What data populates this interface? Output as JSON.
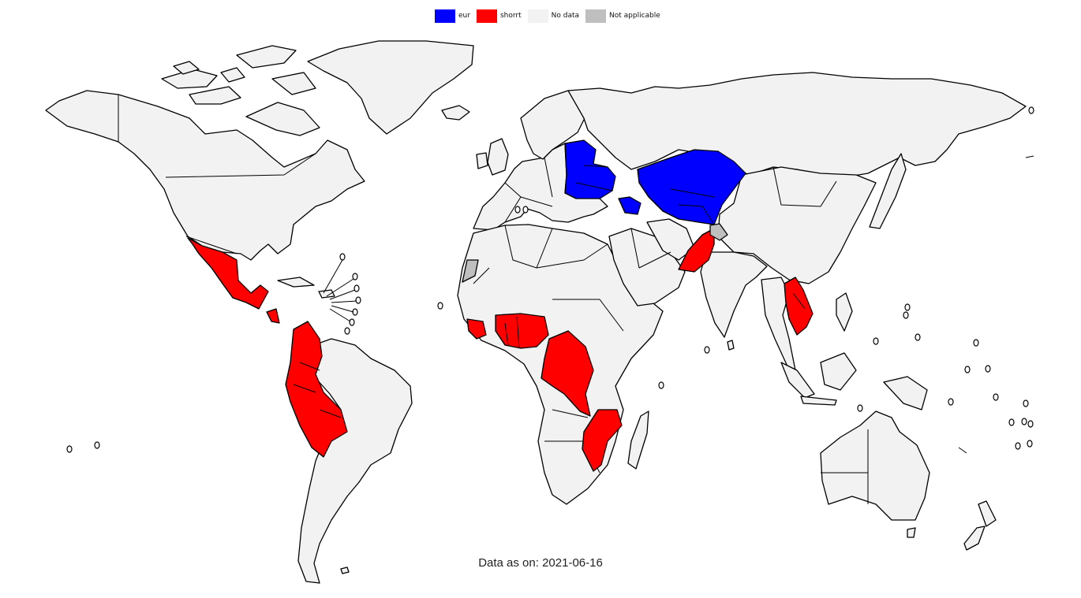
{
  "legend": {
    "items": [
      {
        "label": "eur",
        "color": "#0000ff"
      },
      {
        "label": "shorrt",
        "color": "#ff0000"
      },
      {
        "label": "No data",
        "color": "#f2f2f2"
      },
      {
        "label": "Not applicable",
        "color": "#bfbfbf"
      }
    ]
  },
  "footer": {
    "prefix": "Data as on: ",
    "date": "2021-06-16"
  },
  "colors": {
    "eur": "#0000ff",
    "shorrt": "#ff0000",
    "no_data": "#f2f2f2",
    "not_applicable": "#bfbfbf",
    "ocean": "#ffffff",
    "border": "#000000"
  }
}
